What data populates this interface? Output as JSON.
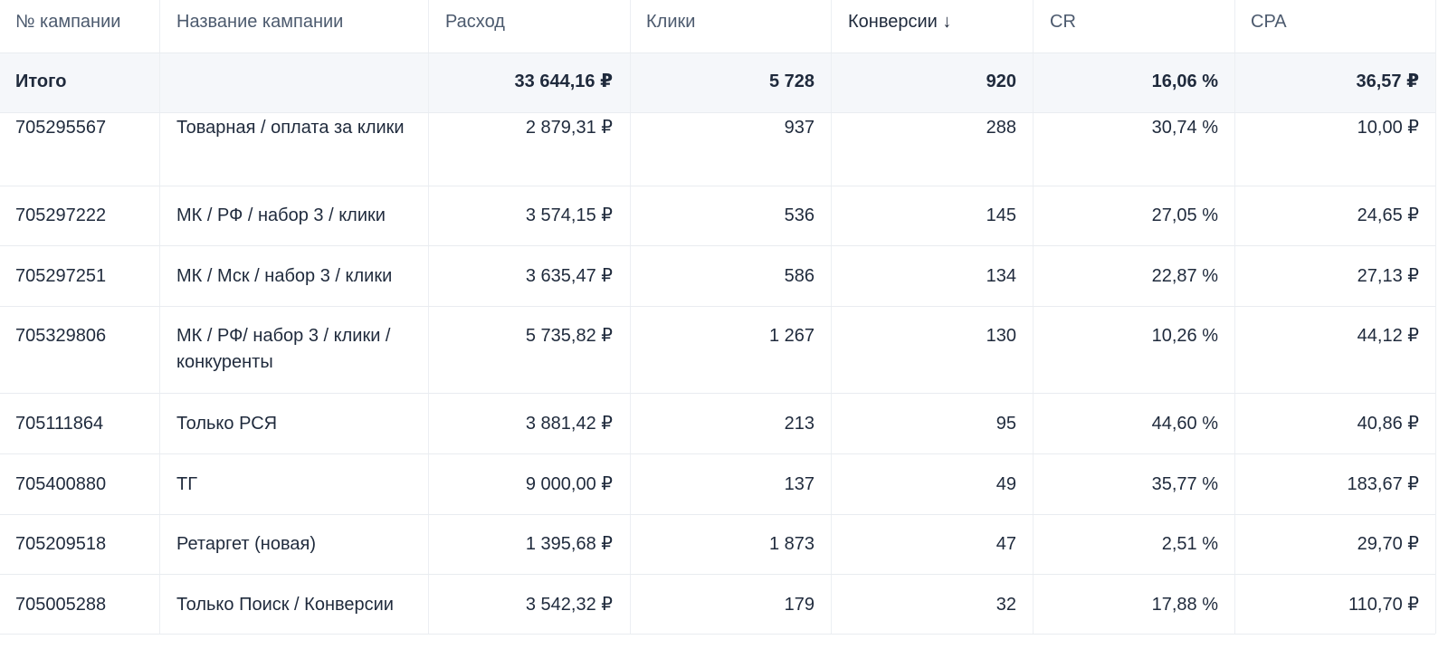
{
  "colors": {
    "text": "#1f2a3c",
    "header_text": "#4c5a6e",
    "total_row_bg": "#f5f7fa",
    "grid_line": "#e9ecf0"
  },
  "table": {
    "headers": [
      "№ кампании",
      "Название кампании",
      "Расход",
      "Клики",
      "Конверсии ↓",
      "CR",
      "CPA"
    ],
    "total": {
      "label": "Итого",
      "name": "",
      "spend": "33 644,16 ₽",
      "clicks": "5 728",
      "conversions": "920",
      "cr": "16,06 %",
      "cpa": "36,57 ₽"
    },
    "rows": [
      {
        "id": "705295567",
        "name": "Товарная / оплата за клики",
        "spend": "2 879,31 ₽",
        "clicks": "937",
        "conversions": "288",
        "cr": "30,74 %",
        "cpa": "10,00 ₽"
      },
      {
        "id": "705297222",
        "name": "МК / РФ / набор 3 / клики",
        "spend": "3 574,15 ₽",
        "clicks": "536",
        "conversions": "145",
        "cr": "27,05 %",
        "cpa": "24,65 ₽"
      },
      {
        "id": "705297251",
        "name": "МК / Мск / набор 3 / клики",
        "spend": "3 635,47 ₽",
        "clicks": "586",
        "conversions": "134",
        "cr": "22,87 %",
        "cpa": "27,13 ₽"
      },
      {
        "id": "705329806",
        "name": "МК / РФ/ набор 3 / клики  / конкуренты",
        "spend": "5 735,82 ₽",
        "clicks": "1 267",
        "conversions": "130",
        "cr": "10,26 %",
        "cpa": "44,12 ₽"
      },
      {
        "id": "705111864",
        "name": "Только РСЯ",
        "spend": "3 881,42 ₽",
        "clicks": "213",
        "conversions": "95",
        "cr": "44,60 %",
        "cpa": "40,86 ₽"
      },
      {
        "id": "705400880",
        "name": "ТГ",
        "spend": "9 000,00 ₽",
        "clicks": "137",
        "conversions": "49",
        "cr": "35,77 %",
        "cpa": "183,67 ₽"
      },
      {
        "id": "705209518",
        "name": "Ретаргет (новая)",
        "spend": "1 395,68 ₽",
        "clicks": "1 873",
        "conversions": "47",
        "cr": "2,51 %",
        "cpa": "29,70 ₽"
      },
      {
        "id": "705005288",
        "name": "Только Поиск / Конверсии",
        "spend": "3 542,32 ₽",
        "clicks": "179",
        "conversions": "32",
        "cr": "17,88 %",
        "cpa": "110,70 ₽"
      }
    ]
  }
}
